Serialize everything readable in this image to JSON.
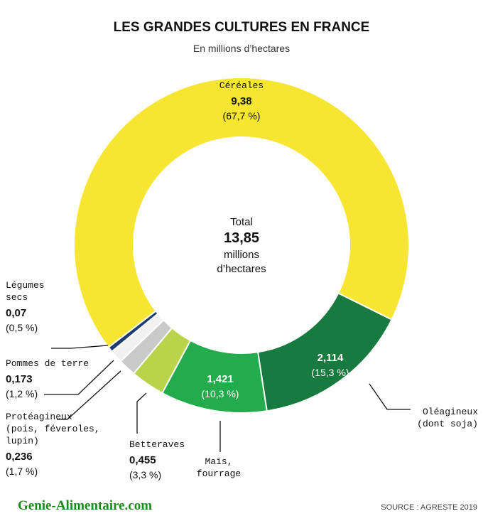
{
  "chart_data": {
    "type": "donut",
    "title": "LES GRANDES CULTURES EN FRANCE",
    "subtitle": "En millions d’hectares",
    "categories": [
      "Céréales",
      "Oléagineux (dont soja)",
      "Maïs, fourrage",
      "Betteraves",
      "Protéagineux (pois, féveroles, lupin)",
      "Pommes de terre",
      "Légumes secs"
    ],
    "values": [
      9.38,
      2.114,
      1.421,
      0.455,
      0.236,
      0.173,
      0.07
    ],
    "value_labels": [
      "9,38",
      "2,114",
      "1,421",
      "0,455",
      "0,236",
      "0,173",
      "0,07"
    ],
    "share_labels": [
      "(67,7 %)",
      "(15,3 %)",
      "(10,3 %)",
      "(3,3 %)",
      "(1,7 %)",
      "(1,2 %)",
      "(0,5 %)"
    ],
    "colors": [
      "#f6e531",
      "#177a3f",
      "#22ac4b",
      "#b9d34b",
      "#c9c9c9",
      "#f1f1f1",
      "#1f3a6e"
    ],
    "center": {
      "title": "Total",
      "value": 13.85,
      "value_label": "13,85",
      "unit": "millions d’hectares"
    },
    "source": "SOURCE : AGRESTE 2019",
    "watermark": "Genie-Alimentaire.com"
  }
}
